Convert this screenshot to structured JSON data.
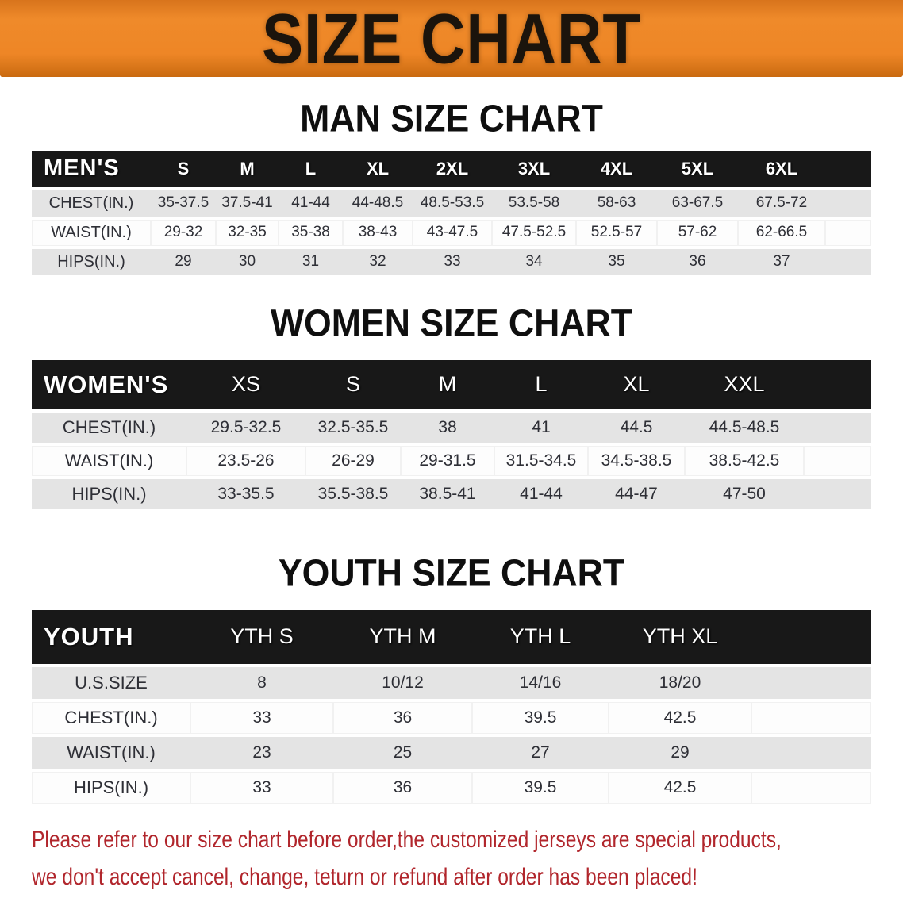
{
  "banner": {
    "title": "SIZE CHART"
  },
  "sections": [
    {
      "id": "men",
      "heading": "MAN SIZE CHART",
      "table": {
        "label": "MEN'S",
        "columns": [
          "S",
          "M",
          "L",
          "XL",
          "2XL",
          "3XL",
          "4XL",
          "5XL",
          "6XL"
        ],
        "rows": [
          {
            "label": "CHEST(IN.)",
            "values": [
              "35-37.5",
              "37.5-41",
              "41-44",
              "44-48.5",
              "48.5-53.5",
              "53.5-58",
              "58-63",
              "63-67.5",
              "67.5-72"
            ]
          },
          {
            "label": "WAIST(IN.)",
            "values": [
              "29-32",
              "32-35",
              "35-38",
              "38-43",
              "43-47.5",
              "47.5-52.5",
              "52.5-57",
              "57-62",
              "62-66.5"
            ]
          },
          {
            "label": "HIPS(IN.)",
            "values": [
              "29",
              "30",
              "31",
              "32",
              "33",
              "34",
              "35",
              "36",
              "37"
            ]
          }
        ]
      }
    },
    {
      "id": "women",
      "heading": "WOMEN SIZE CHART",
      "table": {
        "label": "WOMEN'S",
        "columns": [
          "XS",
          "S",
          "M",
          "L",
          "XL",
          "XXL"
        ],
        "rows": [
          {
            "label": "CHEST(IN.)",
            "values": [
              "29.5-32.5",
              "32.5-35.5",
              "38",
              "41",
              "44.5",
              "44.5-48.5"
            ]
          },
          {
            "label": "WAIST(IN.)",
            "values": [
              "23.5-26",
              "26-29",
              "29-31.5",
              "31.5-34.5",
              "34.5-38.5",
              "38.5-42.5"
            ]
          },
          {
            "label": "HIPS(IN.)",
            "values": [
              "33-35.5",
              "35.5-38.5",
              "38.5-41",
              "41-44",
              "44-47",
              "47-50"
            ]
          }
        ]
      }
    },
    {
      "id": "youth",
      "heading": "YOUTH SIZE CHART",
      "table": {
        "label": "YOUTH",
        "columns": [
          "YTH S",
          "YTH M",
          "YTH L",
          "YTH XL"
        ],
        "rows": [
          {
            "label": "U.S.SIZE",
            "values": [
              "8",
              "10/12",
              "14/16",
              "18/20"
            ]
          },
          {
            "label": "CHEST(IN.)",
            "values": [
              "33",
              "36",
              "39.5",
              "42.5"
            ]
          },
          {
            "label": "WAIST(IN.)",
            "values": [
              "23",
              "25",
              "27",
              "29"
            ]
          },
          {
            "label": "HIPS(IN.)",
            "values": [
              "33",
              "36",
              "39.5",
              "42.5"
            ]
          }
        ]
      }
    }
  ],
  "footer": {
    "line1": "Please refer to our size chart before order,the customized jerseys are special products,",
    "line2": "we don't accept cancel, change, teturn or refund after order has been placed!"
  },
  "colors": {
    "banner_orange": "#ee8626",
    "band_black": "#181818",
    "stripe_gray": "#e4e4e4",
    "footer_red": "#b1262c",
    "heading_black": "#0f0f0f"
  }
}
